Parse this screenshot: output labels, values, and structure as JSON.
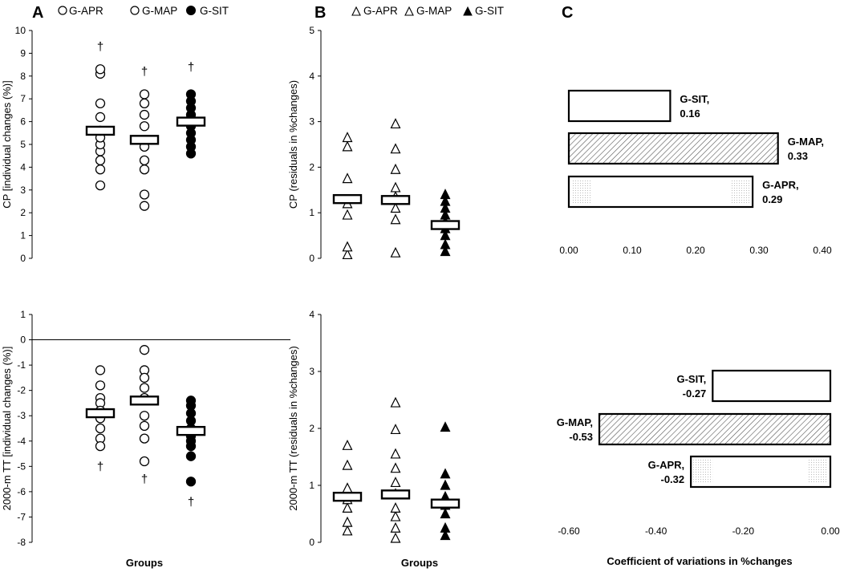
{
  "colors": {
    "axis": "#000000",
    "marker": "#000000",
    "bg": "#ffffff"
  },
  "panel_labels": {
    "a": "A",
    "b": "B",
    "c": "C"
  },
  "legend_a": {
    "apr": "G-APR",
    "map": "G-MAP",
    "sit": "G-SIT"
  },
  "legend_b": {
    "apr": "G-APR",
    "map": "G-MAP",
    "sit": "G-SIT"
  },
  "chart_data": [
    {
      "id": "A1",
      "type": "scatter",
      "panel": "A",
      "ylabel": "CP [individual changes (%)]",
      "xlabel": "",
      "ylim": [
        0,
        10
      ],
      "yticks": [
        0,
        1,
        2,
        3,
        4,
        5,
        6,
        7,
        8,
        9,
        10
      ],
      "legend": [
        "G-APR",
        "G-MAP",
        "G-SIT"
      ],
      "series": [
        {
          "name": "G-APR",
          "marker": "open-circle",
          "values": [
            3.2,
            3.9,
            4.3,
            4.7,
            5.0,
            5.3,
            5.6,
            6.2,
            6.8,
            8.1,
            8.3
          ],
          "mean": 5.6,
          "outlier": 9.3
        },
        {
          "name": "G-MAP",
          "marker": "open-circle",
          "values": [
            2.3,
            2.8,
            3.9,
            4.3,
            4.9,
            5.8,
            6.3,
            6.8,
            7.2
          ],
          "mean": 5.2,
          "outlier": 8.2
        },
        {
          "name": "G-SIT",
          "marker": "filled-circle",
          "values": [
            4.6,
            4.9,
            5.2,
            5.5,
            5.8,
            6.0,
            6.3,
            6.6,
            6.9,
            7.2
          ],
          "mean": 6.0,
          "outlier": 8.4
        }
      ]
    },
    {
      "id": "A2",
      "type": "scatter",
      "panel": "A",
      "ylabel": "2000-m TT [individual changes (%)]",
      "xlabel": "Groups",
      "ylim": [
        -8,
        1
      ],
      "yticks": [
        1,
        0,
        -1,
        -2,
        -3,
        -4,
        -5,
        -6,
        -7,
        -8
      ],
      "series": [
        {
          "name": "G-APR",
          "marker": "open-circle",
          "values": [
            -1.2,
            -1.8,
            -2.3,
            -2.5,
            -2.8,
            -3.1,
            -3.5,
            -3.9,
            -4.2
          ],
          "mean": -2.9,
          "outlier": -5.0
        },
        {
          "name": "G-MAP",
          "marker": "open-circle",
          "values": [
            -0.4,
            -1.2,
            -1.5,
            -1.9,
            -2.3,
            -3.0,
            -3.4,
            -3.9,
            -4.8
          ],
          "mean": -2.4,
          "outlier": -5.5
        },
        {
          "name": "G-SIT",
          "marker": "filled-circle",
          "values": [
            -2.4,
            -2.6,
            -2.9,
            -3.2,
            -3.5,
            -3.8,
            -4.0,
            -4.2,
            -4.6,
            -5.6
          ],
          "mean": -3.6,
          "outlier": -6.4
        }
      ]
    },
    {
      "id": "B1",
      "type": "scatter",
      "panel": "B",
      "ylabel": "CP (residuals in %changes)",
      "xlabel": "",
      "ylim": [
        0,
        5
      ],
      "yticks": [
        0,
        1,
        2,
        3,
        4,
        5
      ],
      "legend": [
        "G-APR",
        "G-MAP",
        "G-SIT"
      ],
      "series": [
        {
          "name": "G-APR",
          "marker": "open-triangle",
          "values": [
            0.08,
            0.25,
            0.95,
            1.2,
            1.75,
            2.45,
            2.65
          ],
          "mean": 1.3
        },
        {
          "name": "G-MAP",
          "marker": "open-triangle",
          "values": [
            0.12,
            0.85,
            1.1,
            1.35,
            1.55,
            1.95,
            2.4,
            2.95
          ],
          "mean": 1.28
        },
        {
          "name": "G-SIT",
          "marker": "filled-triangle",
          "values": [
            0.15,
            0.3,
            0.5,
            0.65,
            0.8,
            0.95,
            1.1,
            1.25,
            1.4
          ],
          "mean": 0.73
        }
      ]
    },
    {
      "id": "B2",
      "type": "scatter",
      "panel": "B",
      "ylabel": "2000-m TT (residuals in %changes)",
      "xlabel": "Groups",
      "ylim": [
        0,
        4
      ],
      "yticks": [
        0,
        1,
        2,
        3,
        4
      ],
      "series": [
        {
          "name": "G-APR",
          "marker": "open-triangle",
          "values": [
            0.2,
            0.35,
            0.6,
            0.75,
            0.95,
            1.35,
            1.7
          ],
          "mean": 0.8
        },
        {
          "name": "G-MAP",
          "marker": "open-triangle",
          "values": [
            0.07,
            0.25,
            0.45,
            0.6,
            0.85,
            1.05,
            1.3,
            1.55,
            1.98,
            2.45
          ],
          "mean": 0.84
        },
        {
          "name": "G-SIT",
          "marker": "filled-triangle",
          "values": [
            0.12,
            0.25,
            0.5,
            0.65,
            0.8,
            1.0,
            1.2,
            2.02
          ],
          "mean": 0.68
        }
      ]
    },
    {
      "id": "C1",
      "type": "bar",
      "orientation": "horizontal",
      "panel": "C",
      "categories": [
        "G-SIT",
        "G-MAP",
        "G-APR"
      ],
      "values": [
        0.16,
        0.33,
        0.29
      ],
      "labels": [
        "0.16",
        "0.33",
        "0.29"
      ],
      "fills": [
        "plain",
        "hatched",
        "dotted"
      ],
      "xlim": [
        0,
        0.4
      ],
      "xticks": [
        "0.00",
        "0.10",
        "0.20",
        "0.30",
        "0.40"
      ],
      "xtick_values": [
        0,
        0.1,
        0.2,
        0.3,
        0.4
      ]
    },
    {
      "id": "C2",
      "type": "bar",
      "orientation": "horizontal",
      "panel": "C",
      "categories": [
        "G-SIT",
        "G-MAP",
        "G-APR"
      ],
      "values": [
        -0.27,
        -0.53,
        -0.32
      ],
      "labels": [
        "-0.27",
        "-0.53",
        "-0.32"
      ],
      "fills": [
        "plain",
        "hatched",
        "dotted"
      ],
      "xlim": [
        -0.6,
        0
      ],
      "xticks": [
        "-0.60",
        "-0.40",
        "-0.20",
        "0.00"
      ],
      "xtick_values": [
        -0.6,
        -0.4,
        -0.2,
        0
      ],
      "xlabel": "Coefficient of variations in %changes"
    }
  ]
}
